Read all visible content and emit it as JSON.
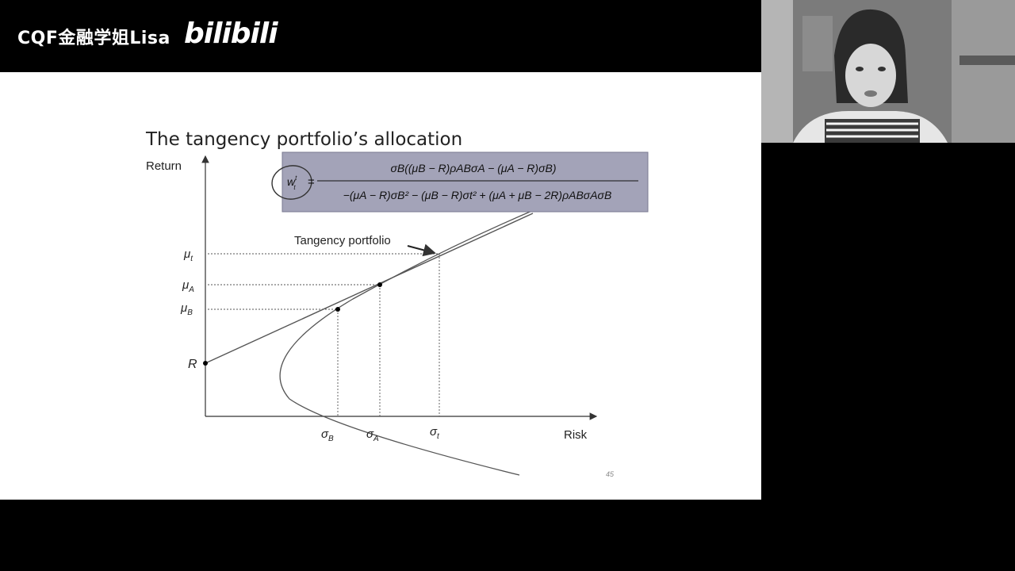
{
  "overlay": {
    "brand_text": "CQF金融学姐Lisa",
    "brand_logo": "bilibili"
  },
  "slide": {
    "title": "The tangency portfolio’s allocation",
    "page_number": "45",
    "formula": {
      "lhs": "w",
      "lhs_sup": "t",
      "lhs_sub": "t",
      "numerator": "σB((μB − R)ρABσA − (μA − R)σB)",
      "denominator": "−(μA − R)σB² − (μB − R)σt² + (μA + μB − 2R)ρABσAσB"
    },
    "diagram": {
      "y_axis_label": "Return",
      "x_axis_label": "Risk",
      "origin_label": "R",
      "annotation": "Tangency portfolio",
      "y_ticks": [
        {
          "base": "μ",
          "sub": "t"
        },
        {
          "base": "μ",
          "sub": "A"
        },
        {
          "base": "μ",
          "sub": "B"
        }
      ],
      "x_ticks": [
        {
          "base": "σ",
          "sub": "B"
        },
        {
          "base": "σ",
          "sub": "A"
        },
        {
          "base": "σ",
          "sub": "t"
        }
      ]
    }
  },
  "colors": {
    "formula_box": "#a3a3b8",
    "lines": "#555555",
    "slide_bg": "#ffffff",
    "page_bg": "#000000"
  },
  "icons": {
    "webcam": "presenter-webcam-feed",
    "highlight": "hand-drawn-circle"
  }
}
